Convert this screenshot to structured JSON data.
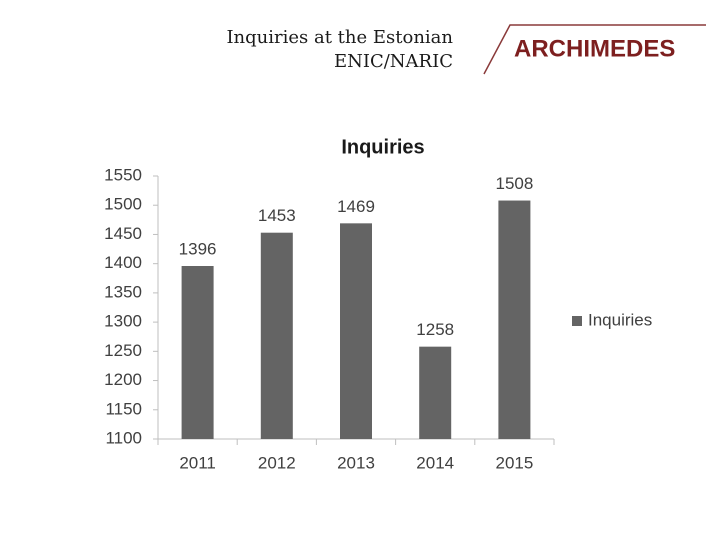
{
  "header": {
    "title_lines": [
      "Inquiries at the Estonian",
      "ENIC/NARIC"
    ],
    "logo": "ARCHIMEDES"
  },
  "chart_data": {
    "type": "bar",
    "title": "Inquiries",
    "categories": [
      "2011",
      "2012",
      "2013",
      "2014",
      "2015"
    ],
    "series": [
      {
        "name": "Inquiries",
        "color": "#646464",
        "values": [
          1396,
          1453,
          1469,
          1258,
          1508
        ]
      }
    ],
    "ylim": [
      1100,
      1550
    ],
    "yticks": [
      1100,
      1150,
      1200,
      1250,
      1300,
      1350,
      1400,
      1450,
      1500,
      1550
    ],
    "grid": false,
    "legend": "right"
  }
}
